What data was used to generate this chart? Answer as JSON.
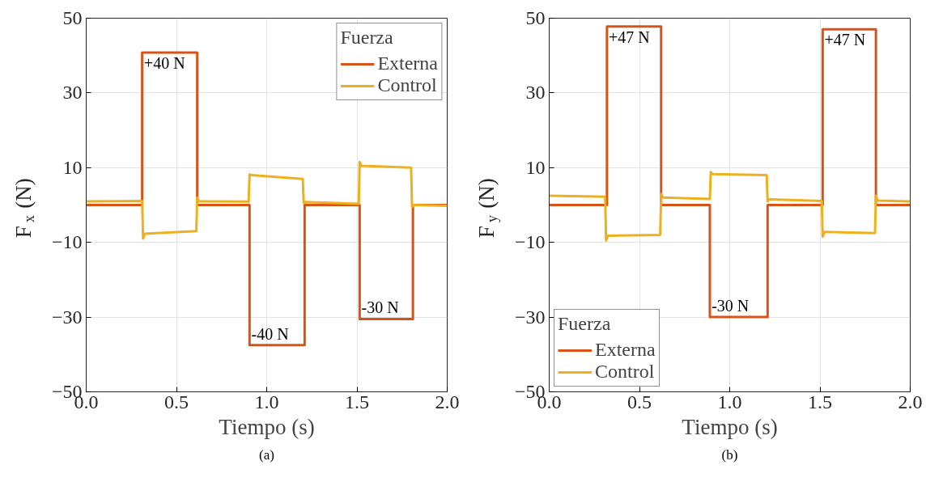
{
  "chart_data": [
    {
      "type": "line",
      "xlabel": "Tiempo (s)",
      "ylabel": "F$_{x}$ (N)",
      "legend_title": "Fuerza",
      "legend": "top right",
      "grid": true,
      "xlim": [
        0,
        2
      ],
      "ylim": [
        -50,
        50
      ],
      "xticks": [
        {
          "value": 0,
          "label": "0.0"
        },
        {
          "value": 0.5,
          "label": "0.5"
        },
        {
          "value": 1,
          "label": "1.0"
        },
        {
          "value": 1.5,
          "label": "1.5"
        },
        {
          "value": 2,
          "label": "2.0"
        }
      ],
      "yticks": [
        -50,
        -30,
        -10,
        10,
        30,
        50
      ],
      "series": [
        {
          "name": "Externa",
          "color": "#d95319",
          "x": [
            0,
            0.31,
            0.31,
            0.615,
            0.615,
            0.905,
            0.905,
            1.21,
            1.21,
            1.515,
            1.515,
            1.81,
            1.81,
            2.0
          ],
          "values": [
            0,
            0,
            40.8,
            40.8,
            0,
            0,
            -37.5,
            -37.5,
            0,
            0,
            -30.5,
            -30.5,
            0,
            0
          ]
        },
        {
          "name": "Control",
          "color": "#edb120",
          "x": [
            0,
            0.31,
            0.315,
            0.325,
            0.61,
            0.615,
            0.625,
            0.9,
            0.905,
            0.915,
            1.2,
            1.205,
            1.215,
            1.51,
            1.515,
            1.525,
            1.8,
            1.805,
            1.815,
            2.0
          ],
          "values": [
            1.0,
            1.1,
            -9,
            -7.7,
            -7.0,
            2.0,
            1.0,
            0.9,
            8.2,
            8.0,
            7.0,
            0.5,
            0.8,
            0.3,
            11.5,
            10.5,
            10.0,
            -0.5,
            0,
            -0.2
          ]
        }
      ],
      "annotations": [
        {
          "text": "+40 N",
          "x": 0.32,
          "y": 40.8
        },
        {
          "text": "-40 N",
          "x": 0.915,
          "y": -37.5
        },
        {
          "text": "-30 N",
          "x": 1.525,
          "y": -30.5
        },
        "(a)"
      ]
    },
    {
      "type": "line",
      "xlabel": "Tiempo (s)",
      "ylabel": "F$_{y}$ (N)",
      "legend_title": "Fuerza",
      "legend": "bottom left",
      "grid": true,
      "xlim": [
        0,
        2
      ],
      "ylim": [
        -50,
        50
      ],
      "xticks": [
        {
          "value": 0,
          "label": "0.0"
        },
        {
          "value": 0.5,
          "label": "0.5"
        },
        {
          "value": 1,
          "label": "1.0"
        },
        {
          "value": 1.5,
          "label": "1.5"
        },
        {
          "value": 2,
          "label": "2.0"
        }
      ],
      "yticks": [
        -50,
        -30,
        -10,
        10,
        30,
        50
      ],
      "series": [
        {
          "name": "Externa",
          "color": "#d95319",
          "x": [
            0,
            0.32,
            0.32,
            0.62,
            0.62,
            0.89,
            0.89,
            1.21,
            1.21,
            1.515,
            1.515,
            1.81,
            1.81,
            2.0
          ],
          "values": [
            0,
            0,
            47.8,
            47.8,
            0,
            0,
            -30,
            -30,
            0,
            0,
            47,
            47,
            0,
            0
          ]
        },
        {
          "name": "Control",
          "color": "#edb120",
          "x": [
            0,
            0.31,
            0.315,
            0.325,
            0.615,
            0.62,
            0.63,
            0.89,
            0.895,
            0.905,
            1.205,
            1.21,
            1.22,
            1.51,
            1.515,
            1.525,
            1.805,
            1.81,
            1.82,
            2.0
          ],
          "values": [
            2.5,
            2.2,
            -9.5,
            -8.2,
            -8.0,
            3.0,
            2.0,
            1.6,
            8.8,
            8.3,
            8.0,
            1.0,
            1.5,
            1.1,
            -8.5,
            -7.2,
            -7.5,
            2.5,
            1.2,
            1.0
          ]
        }
      ],
      "annotations": [
        {
          "text": "+47 N",
          "x": 0.33,
          "y": 47.8
        },
        {
          "text": "-30 N",
          "x": 0.9,
          "y": -30
        },
        {
          "text": "+47 N",
          "x": 1.525,
          "y": 47
        },
        "(b)"
      ]
    }
  ]
}
